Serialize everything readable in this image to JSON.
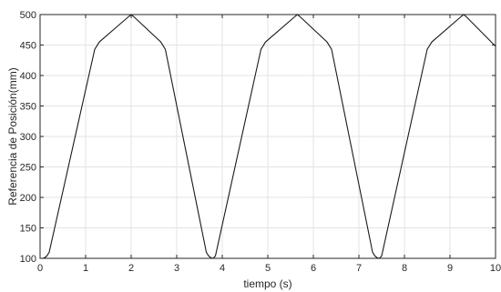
{
  "chart_data": {
    "type": "line",
    "title": "",
    "xlabel": "tiempo (s)",
    "ylabel": "Referencia de Posición(mm)",
    "xlim": [
      0,
      10
    ],
    "ylim": [
      100,
      500
    ],
    "xticks": [
      "0",
      "1",
      "2",
      "3",
      "4",
      "5",
      "6",
      "7",
      "8",
      "9",
      "10"
    ],
    "yticks": [
      "100",
      "150",
      "200",
      "250",
      "300",
      "350",
      "400",
      "450",
      "500"
    ],
    "grid": true,
    "colors": {
      "line": "#1a1a1a",
      "grid": "#e3e3e3",
      "axes": "#262626"
    },
    "series": [
      {
        "x": [
          0,
          0.05,
          0.1,
          0.15,
          0.2,
          1.2,
          1.3,
          1.95,
          2.0,
          2.05,
          2.65,
          2.75,
          3.65,
          3.7,
          3.75,
          3.8,
          3.85,
          4.85,
          4.95,
          5.6,
          5.65,
          5.7,
          6.3,
          6.4,
          7.3,
          7.35,
          7.4,
          7.45,
          7.5,
          8.5,
          8.6,
          9.25,
          9.3,
          9.35,
          10.0
        ],
        "y": [
          100,
          100,
          101,
          104,
          110,
          443,
          455,
          497,
          500,
          497,
          455,
          443,
          110,
          104,
          101,
          100,
          104,
          443,
          455,
          497,
          500,
          497,
          455,
          443,
          110,
          104,
          101,
          100,
          104,
          443,
          455,
          497,
          500,
          497,
          448
        ]
      }
    ]
  }
}
